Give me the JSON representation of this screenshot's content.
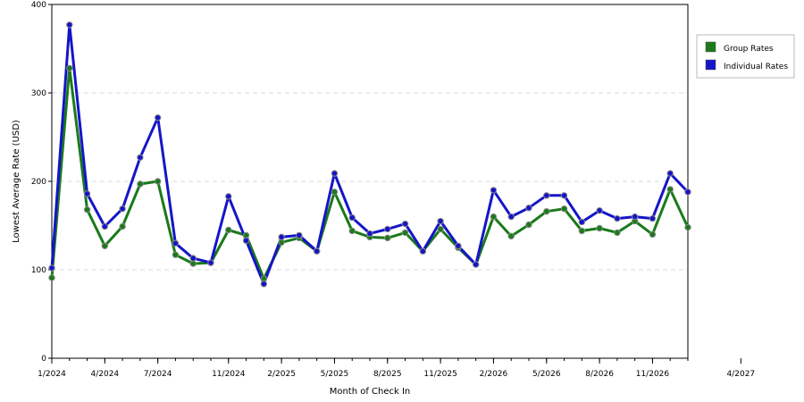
{
  "chart_data": {
    "type": "line",
    "xlabel": "Month of Check In",
    "ylabel": "Lowest Average Rate (USD)",
    "ylim": [
      0,
      400
    ],
    "yticks": [
      0,
      100,
      200,
      300,
      400
    ],
    "grid": "horizontal-dashed",
    "legend_position": "right",
    "x_tick_labels": [
      "1/2024",
      "4/2024",
      "7/2024",
      "11/2024",
      "2/2025",
      "5/2025",
      "8/2025",
      "11/2025",
      "2/2026",
      "5/2026",
      "8/2026",
      "11/2026",
      "4/2027"
    ],
    "x": [
      0,
      1,
      2,
      3,
      4,
      5,
      6,
      7,
      8,
      9,
      10,
      11,
      12,
      13,
      14,
      15,
      16,
      17,
      18,
      19,
      20,
      21,
      22,
      23,
      24,
      25,
      26,
      27,
      28,
      29,
      30,
      31,
      32,
      33,
      34,
      35,
      36
    ],
    "series": [
      {
        "name": "Group Rates",
        "color": "#1a7a1a",
        "values": [
          91,
          328,
          168,
          127,
          149,
          197,
          200,
          117,
          107,
          108,
          145,
          139,
          90,
          131,
          136,
          121,
          188,
          144,
          137,
          136,
          142,
          121,
          146,
          125,
          106,
          160,
          138,
          151,
          166,
          169,
          144,
          147,
          142,
          155,
          140,
          191,
          148
        ]
      },
      {
        "name": "Individual Rates",
        "color": "#1515c8",
        "values": [
          102,
          377,
          186,
          149,
          169,
          227,
          272,
          130,
          113,
          108,
          183,
          133,
          84,
          137,
          139,
          121,
          209,
          159,
          141,
          146,
          152,
          121,
          155,
          127,
          106,
          190,
          160,
          170,
          184,
          184,
          154,
          167,
          158,
          160,
          158,
          209,
          188
        ]
      }
    ]
  }
}
